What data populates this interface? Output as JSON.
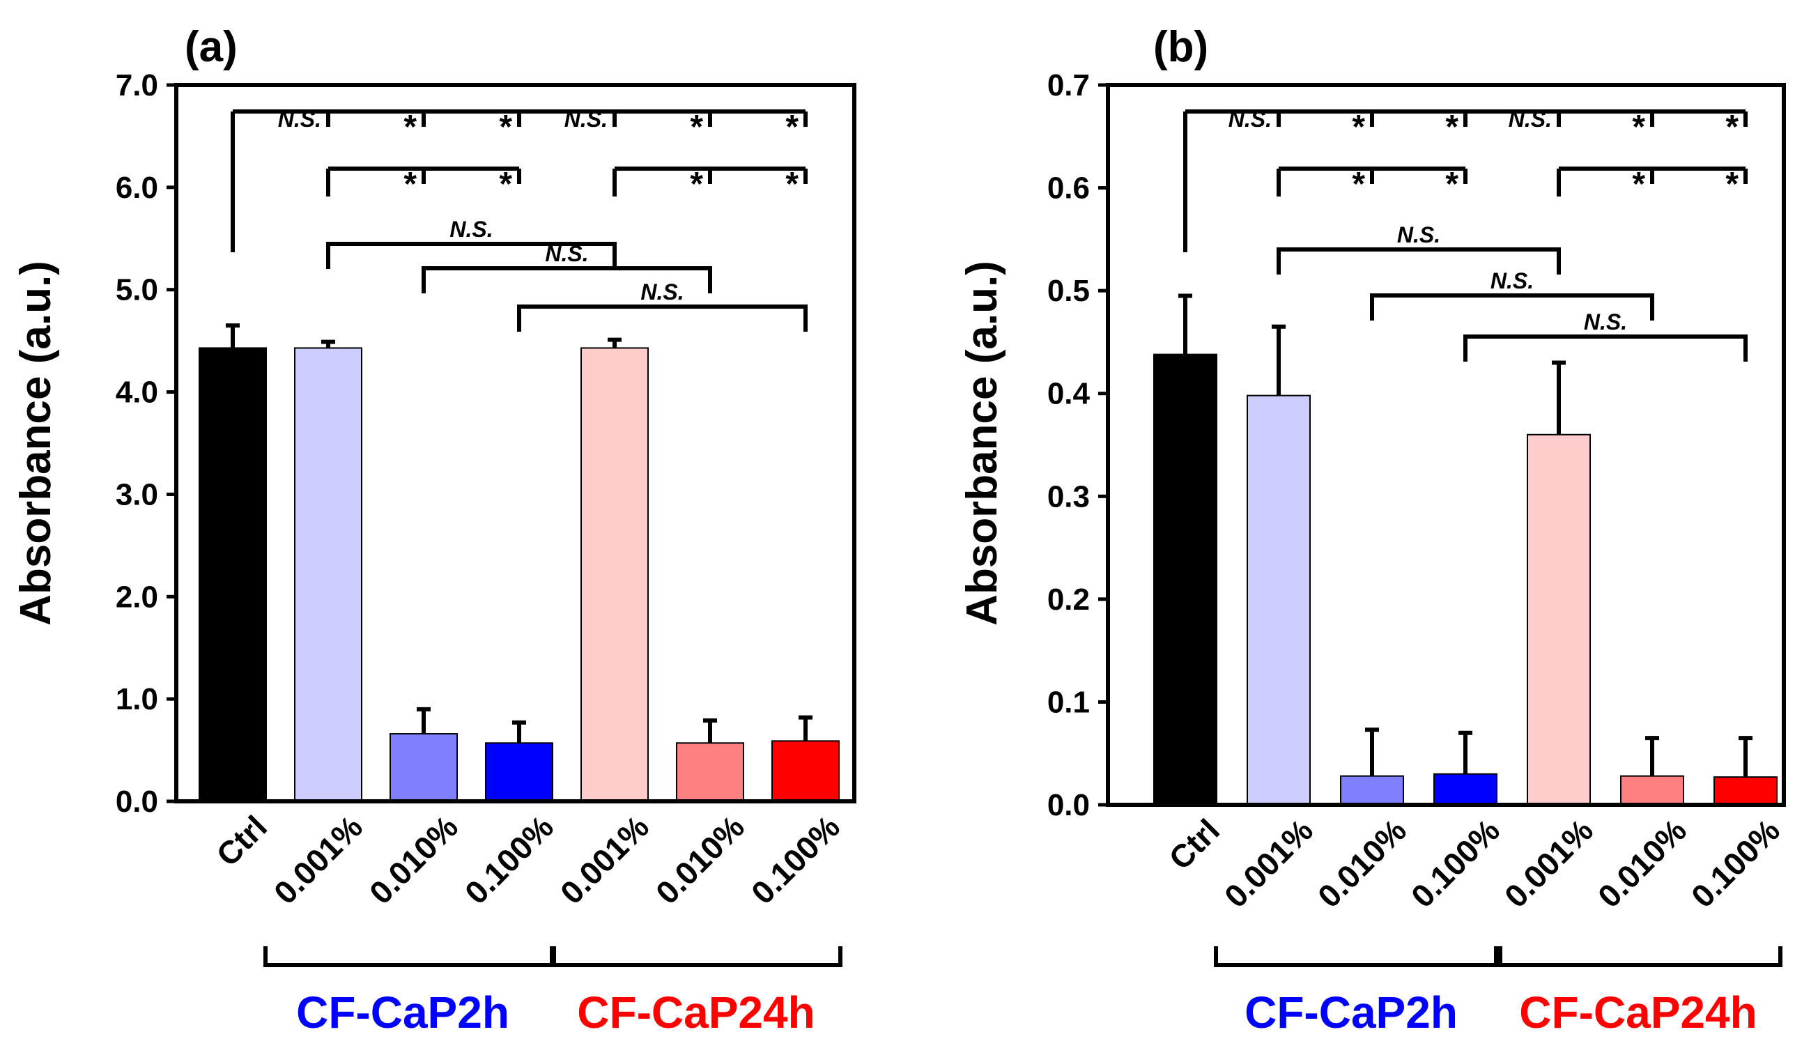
{
  "colors": {
    "ctrl": "#000000",
    "cap2h_001": "#ccccff",
    "cap2h_010": "#8080ff",
    "cap2h_100": "#0000ff",
    "cap24h_001": "#ffcccc",
    "cap24h_010": "#ff8080",
    "cap24h_100": "#ff0000",
    "group_2h": "#0000ff",
    "group_24h": "#ff0000"
  },
  "chart_data": [
    {
      "type": "bar",
      "panel_label": "(a)",
      "ylabel": "Absorbance (a.u.)",
      "ylim": [
        0,
        7.0
      ],
      "yticks": [
        "0.0",
        "1.0",
        "2.0",
        "3.0",
        "4.0",
        "5.0",
        "6.0",
        "7.0"
      ],
      "categories": [
        "Ctrl",
        "0.001%",
        "0.010%",
        "0.100%",
        "0.001%",
        "0.010%",
        "0.100%"
      ],
      "values": [
        4.43,
        4.43,
        0.66,
        0.57,
        4.43,
        0.57,
        0.59
      ],
      "errors": [
        0.22,
        0.06,
        0.24,
        0.2,
        0.08,
        0.22,
        0.23
      ],
      "groups": [
        {
          "label": "CF-CaP2h",
          "from": 1,
          "to": 3
        },
        {
          "label": "CF-CaP24h",
          "from": 4,
          "to": 6
        }
      ],
      "annotations": [
        {
          "label": "N.S.",
          "from": 0,
          "to": 1
        },
        {
          "label": "*",
          "from": 0,
          "to": 2
        },
        {
          "label": "*",
          "from": 0,
          "to": 3
        },
        {
          "label": "N.S.",
          "from": 0,
          "to": 4
        },
        {
          "label": "*",
          "from": 0,
          "to": 5
        },
        {
          "label": "*",
          "from": 0,
          "to": 6
        },
        {
          "label": "*",
          "from": 1,
          "to": 2
        },
        {
          "label": "*",
          "from": 1,
          "to": 3
        },
        {
          "label": "*",
          "from": 4,
          "to": 5
        },
        {
          "label": "*",
          "from": 4,
          "to": 6
        },
        {
          "label": "N.S.",
          "from": 1,
          "to": 4
        },
        {
          "label": "N.S.",
          "from": 2,
          "to": 5
        },
        {
          "label": "N.S.",
          "from": 3,
          "to": 6
        }
      ]
    },
    {
      "type": "bar",
      "panel_label": "(b)",
      "ylabel": "Absorbance (a.u.)",
      "ylim": [
        0,
        0.7
      ],
      "yticks": [
        "0.0",
        "0.1",
        "0.2",
        "0.3",
        "0.4",
        "0.5",
        "0.6",
        "0.7"
      ],
      "categories": [
        "Ctrl",
        "0.001%",
        "0.010%",
        "0.100%",
        "0.001%",
        "0.010%",
        "0.100%"
      ],
      "values": [
        0.438,
        0.398,
        0.028,
        0.03,
        0.36,
        0.028,
        0.027
      ],
      "errors": [
        0.057,
        0.067,
        0.045,
        0.04,
        0.07,
        0.037,
        0.038
      ],
      "groups": [
        {
          "label": "CF-CaP2h",
          "from": 1,
          "to": 3
        },
        {
          "label": "CF-CaP24h",
          "from": 4,
          "to": 6
        }
      ],
      "annotations": [
        {
          "label": "N.S.",
          "from": 0,
          "to": 1
        },
        {
          "label": "*",
          "from": 0,
          "to": 2
        },
        {
          "label": "*",
          "from": 0,
          "to": 3
        },
        {
          "label": "N.S.",
          "from": 0,
          "to": 4
        },
        {
          "label": "*",
          "from": 0,
          "to": 5
        },
        {
          "label": "*",
          "from": 0,
          "to": 6
        },
        {
          "label": "*",
          "from": 1,
          "to": 2
        },
        {
          "label": "*",
          "from": 1,
          "to": 3
        },
        {
          "label": "*",
          "from": 4,
          "to": 5
        },
        {
          "label": "*",
          "from": 4,
          "to": 6
        },
        {
          "label": "N.S.",
          "from": 1,
          "to": 4
        },
        {
          "label": "N.S.",
          "from": 2,
          "to": 5
        },
        {
          "label": "N.S.",
          "from": 3,
          "to": 6
        }
      ]
    }
  ]
}
